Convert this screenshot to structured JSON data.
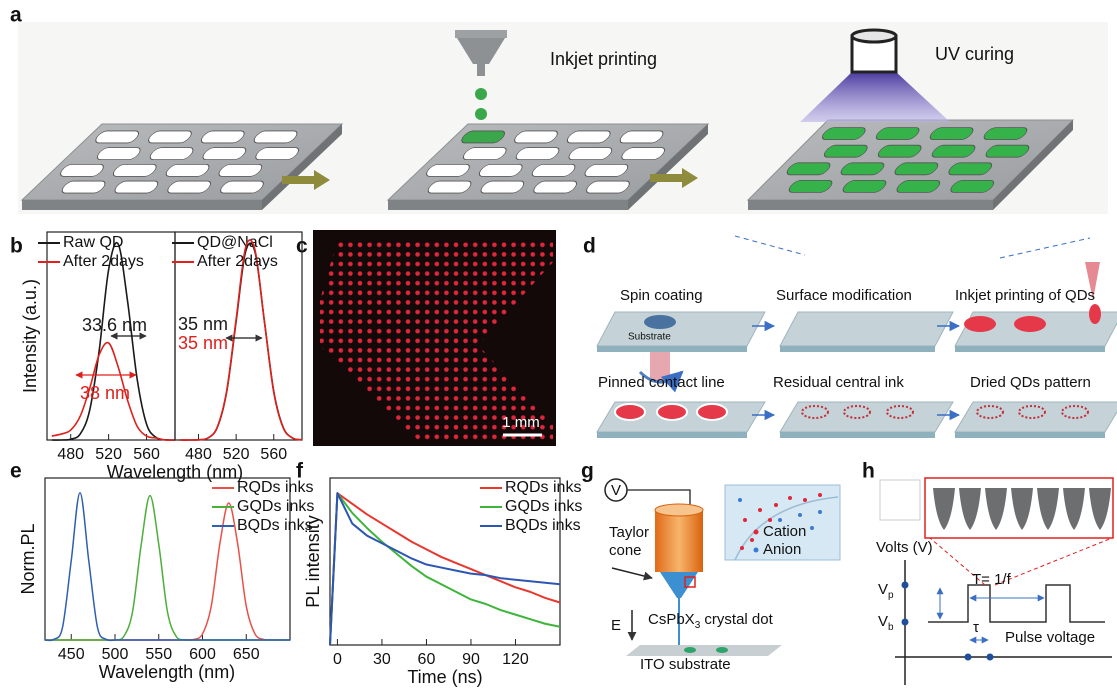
{
  "panel_labels": [
    "a",
    "b",
    "c",
    "d",
    "e",
    "f",
    "g",
    "h"
  ],
  "panel_a": {
    "steps": [
      "Inkjet printing",
      "UV curing"
    ]
  },
  "chart_data": [
    {
      "type": "line",
      "ylabel": "Intensity (a.u.)",
      "xlabel": "Wavelength (nm)",
      "x": [
        460,
        470,
        480,
        490,
        500,
        510,
        520,
        530,
        540,
        550,
        560,
        570,
        580,
        590
      ],
      "xlim": [
        455,
        590
      ],
      "ylim": [
        0,
        1.05
      ],
      "xticks": [
        480,
        520,
        560
      ],
      "series": [
        {
          "name": "Raw QD",
          "color": "#1a1a1a",
          "values": [
            0,
            0,
            0.004,
            0.03,
            0.15,
            0.45,
            0.86,
            0.99,
            0.7,
            0.31,
            0.08,
            0.013,
            0.001,
            0
          ]
        },
        {
          "name": "After 2days",
          "color": "#e0201c",
          "values": [
            0.02,
            0.03,
            0.05,
            0.12,
            0.26,
            0.43,
            0.49,
            0.37,
            0.2,
            0.07,
            0.02,
            0.01,
            0,
            0
          ]
        }
      ],
      "annotations": [
        {
          "text": "33.6 nm",
          "color": "#1a1a1a"
        },
        {
          "text": "38 nm",
          "color": "#e0201c"
        }
      ]
    },
    {
      "type": "line",
      "x": [
        460,
        470,
        480,
        490,
        500,
        510,
        520,
        530,
        540,
        550,
        560,
        570,
        580,
        590
      ],
      "xlim": [
        455,
        590
      ],
      "ylim": [
        0,
        1.05
      ],
      "xticks": [
        480,
        520,
        560
      ],
      "series": [
        {
          "name": "QD@NaCl",
          "color": "#1a1a1a",
          "values": [
            0,
            0,
            0.001,
            0.01,
            0.064,
            0.245,
            0.6,
            0.95,
            0.95,
            0.6,
            0.245,
            0.064,
            0.01,
            0.001
          ]
        },
        {
          "name": "After 2days",
          "color": "#e0201c",
          "values": [
            0,
            0,
            0.001,
            0.01,
            0.066,
            0.25,
            0.61,
            0.97,
            0.96,
            0.6,
            0.24,
            0.062,
            0.01,
            0.001
          ]
        }
      ],
      "annotations": [
        {
          "text": "35 nm",
          "color": "#1a1a1a"
        },
        {
          "text": "35 nm",
          "color": "#e0201c"
        }
      ]
    },
    {
      "type": "line",
      "ylabel": "Norm.PL",
      "xlabel": "Wavelength (nm)",
      "x": [
        420,
        430,
        440,
        450,
        460,
        470,
        480,
        490,
        500,
        510,
        520,
        530,
        540,
        550,
        560,
        570,
        580,
        590,
        600,
        610,
        620,
        630,
        640,
        650,
        660,
        670,
        680,
        690,
        700
      ],
      "xlim": [
        420,
        700
      ],
      "ylim": [
        0,
        1.1
      ],
      "xticks": [
        450,
        500,
        550,
        600,
        650
      ],
      "series": [
        {
          "name": "RQDs inks",
          "color": "#e8504a",
          "values": [
            0,
            0,
            0,
            0,
            0,
            0,
            0,
            0,
            0,
            0,
            0,
            0,
            0,
            0,
            0,
            0,
            0,
            0.004,
            0.041,
            0.23,
            0.66,
            0.93,
            0.66,
            0.23,
            0.041,
            0.004,
            0,
            0,
            0
          ]
        },
        {
          "name": "GQDs inks",
          "color": "#4caf3a",
          "values": [
            0,
            0,
            0,
            0,
            0,
            0,
            0,
            0,
            0.001,
            0.024,
            0.19,
            0.65,
            0.98,
            0.65,
            0.19,
            0.024,
            0.001,
            0,
            0,
            0,
            0,
            0,
            0,
            0,
            0,
            0,
            0,
            0,
            0
          ]
        },
        {
          "name": "BQDs inks",
          "color": "#2e5fb0",
          "values": [
            0,
            0.004,
            0.085,
            0.54,
            1,
            0.54,
            0.085,
            0.004,
            0,
            0,
            0,
            0,
            0,
            0,
            0,
            0,
            0,
            0,
            0,
            0,
            0,
            0,
            0,
            0,
            0,
            0,
            0,
            0,
            0
          ]
        }
      ]
    },
    {
      "type": "line",
      "ylabel": "PL intensity",
      "xlabel": "Time (ns)",
      "x": [
        -5,
        0,
        10,
        20,
        30,
        40,
        50,
        60,
        70,
        80,
        90,
        100,
        110,
        120,
        130,
        140,
        150
      ],
      "xlim": [
        -5,
        150
      ],
      "ylim": [
        0,
        1.1
      ],
      "xticks": [
        0,
        30,
        60,
        90,
        120
      ],
      "series": [
        {
          "name": "RQDs inks",
          "color": "#e8382e",
          "values": [
            0,
            1,
            0.93,
            0.86,
            0.8,
            0.74,
            0.68,
            0.63,
            0.58,
            0.54,
            0.5,
            0.46,
            0.42,
            0.38,
            0.35,
            0.31,
            0.28
          ]
        },
        {
          "name": "GQDs inks",
          "color": "#3fb43a",
          "values": [
            0,
            1,
            0.87,
            0.77,
            0.68,
            0.6,
            0.52,
            0.45,
            0.4,
            0.35,
            0.3,
            0.27,
            0.23,
            0.2,
            0.17,
            0.14,
            0.12
          ]
        },
        {
          "name": "BQDs inks",
          "color": "#2d56b3",
          "values": [
            0,
            1,
            0.8,
            0.72,
            0.67,
            0.62,
            0.57,
            0.53,
            0.51,
            0.49,
            0.47,
            0.46,
            0.44,
            0.43,
            0.42,
            0.41,
            0.4
          ]
        }
      ]
    }
  ],
  "panel_c": {
    "scale_bar": "1 mm"
  },
  "panel_d": {
    "steps": [
      "Spin coating",
      "Surface modification",
      "Inkjet printing of QDs",
      "Pinned contact line",
      "Residual central ink",
      "Dried QDs pattern"
    ],
    "substrate": "Substrate"
  },
  "panel_g": {
    "voltage": "V",
    "taylor_cone": [
      "Taylor",
      "cone"
    ],
    "field": "E",
    "crystal_dot": {
      "main": "CsPbX",
      "sub": "3",
      "rest": " crystal dot"
    },
    "inset_legend": [
      "Cation",
      "Anion"
    ],
    "substrate": "ITO substrate"
  },
  "panel_h": {
    "ylabel": "Volts (V)",
    "period": "T= 1/f",
    "vp": {
      "main": "V",
      "sub": "p"
    },
    "vb": {
      "main": "V",
      "sub": "b"
    },
    "tau": "τ",
    "pulse": "Pulse voltage"
  }
}
